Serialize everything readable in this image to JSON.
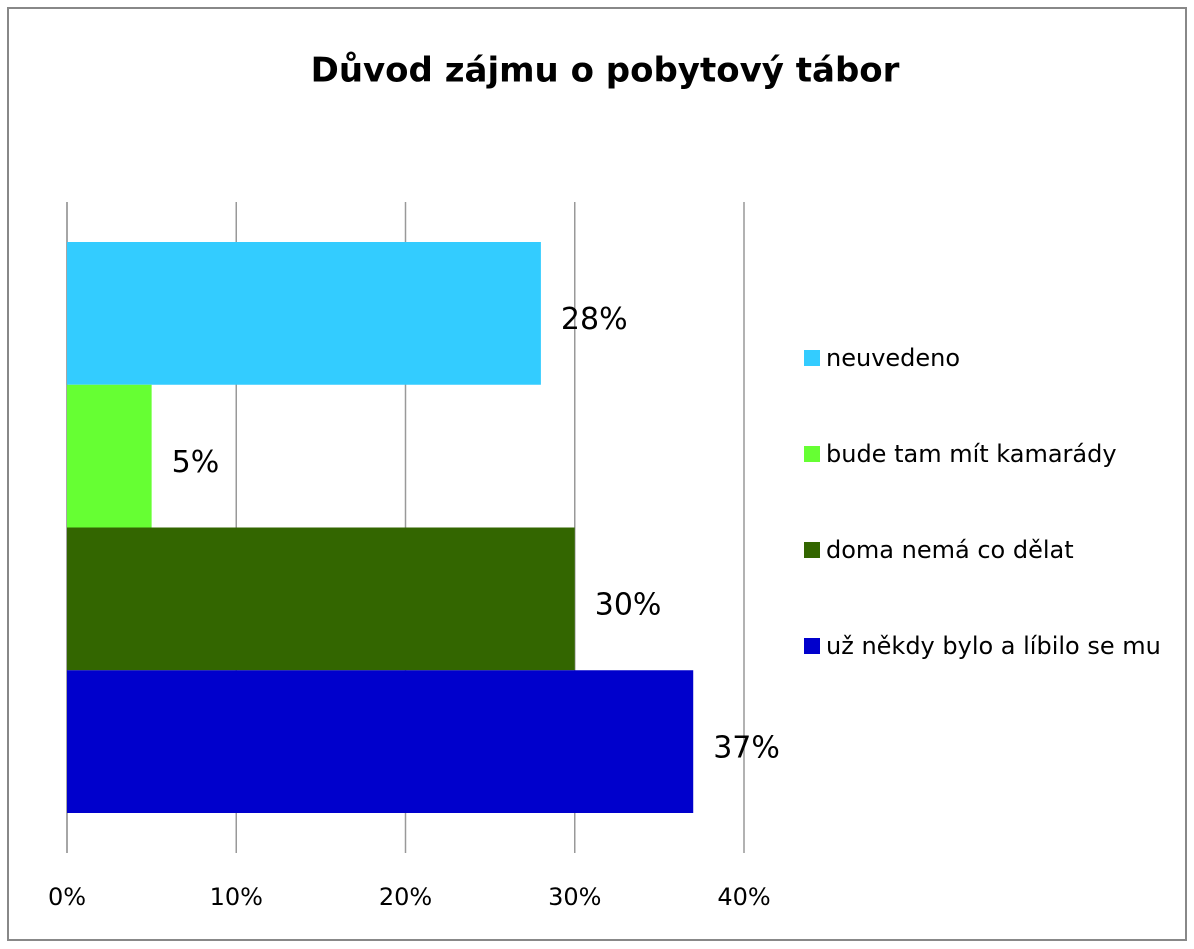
{
  "chart_data": {
    "type": "bar",
    "orientation": "horizontal",
    "title": "Důvod zájmu o pobytový tábor",
    "series": [
      {
        "name": "neuvedeno",
        "color": "#33ccff",
        "values": [
          28
        ],
        "value_labels": [
          "28%"
        ]
      },
      {
        "name": "bude tam mít kamarády",
        "color": "#66ff33",
        "values": [
          5
        ],
        "value_labels": [
          "5%"
        ]
      },
      {
        "name": "doma nemá co dělat",
        "color": "#336600",
        "values": [
          30
        ],
        "value_labels": [
          "30%"
        ]
      },
      {
        "name": "už někdy bylo a líbilo se mu",
        "color": "#0000cc",
        "values": [
          37
        ],
        "value_labels": [
          "37%"
        ]
      }
    ],
    "xlim": [
      0,
      40
    ],
    "xticks": [
      {
        "value": 0,
        "label": "0%"
      },
      {
        "value": 10,
        "label": "10%"
      },
      {
        "value": 20,
        "label": "20%"
      },
      {
        "value": 30,
        "label": "30%"
      },
      {
        "value": 40,
        "label": "40%"
      }
    ],
    "grid": true,
    "legend": "right"
  }
}
